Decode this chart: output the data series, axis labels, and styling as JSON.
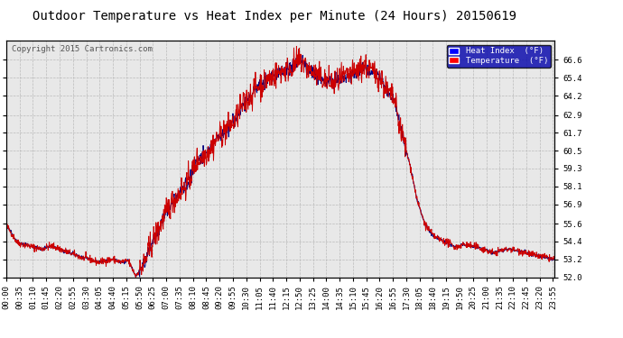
{
  "title": "Outdoor Temperature vs Heat Index per Minute (24 Hours) 20150619",
  "copyright": "Copyright 2015 Cartronics.com",
  "legend_heat_index": "Heat Index  (°F)",
  "legend_temperature": "Temperature  (°F)",
  "ylim": [
    52.0,
    67.9
  ],
  "yticks": [
    52.0,
    53.2,
    54.4,
    55.6,
    56.9,
    58.1,
    59.3,
    60.5,
    61.7,
    62.9,
    64.2,
    65.4,
    66.6
  ],
  "color_temp": "#cc0000",
  "color_heat": "#000080",
  "background_color": "#e8e8e8",
  "grid_color": "#bbbbbb",
  "title_fontsize": 11,
  "tick_fontsize": 6.5,
  "n_minutes": 1440
}
